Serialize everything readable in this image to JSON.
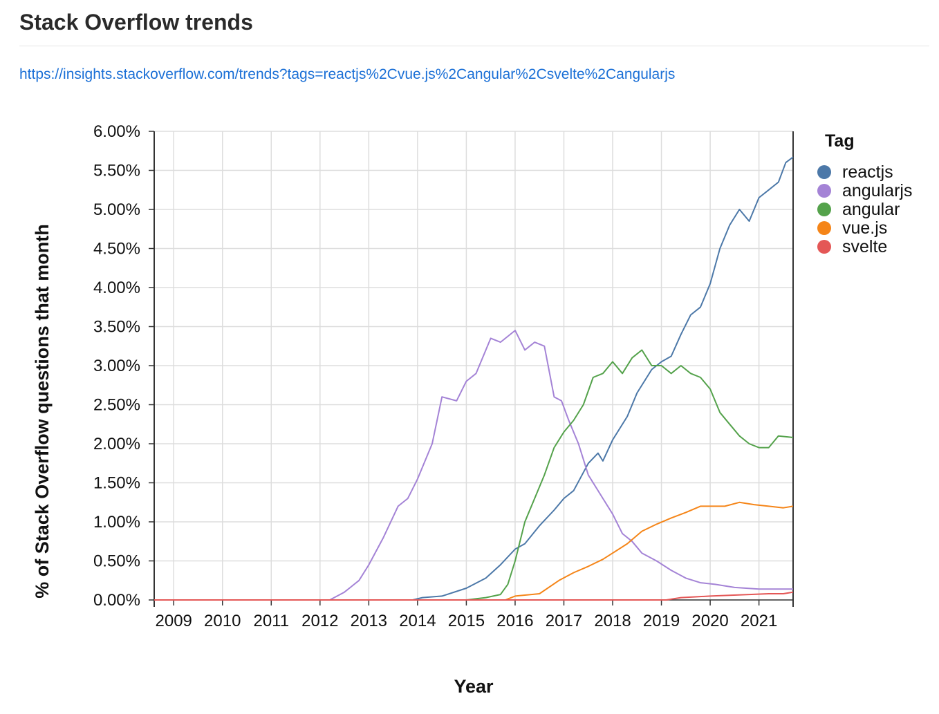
{
  "page": {
    "title": "Stack Overflow trends",
    "link": "https://insights.stackoverflow.com/trends?tags=reactjs%2Cvue.js%2Cangular%2Csvelte%2Cangularjs"
  },
  "chart_data": {
    "type": "line",
    "title": "",
    "xlabel": "Year",
    "ylabel": "% of Stack Overflow questions that month",
    "xlim": [
      2008.6,
      2021.7
    ],
    "ylim": [
      0,
      6
    ],
    "x_ticks": [
      2009,
      2010,
      2011,
      2012,
      2013,
      2014,
      2015,
      2016,
      2017,
      2018,
      2019,
      2020,
      2021
    ],
    "x_tick_labels": [
      "2009",
      "2010",
      "2011",
      "2012",
      "2013",
      "2014",
      "2015",
      "2016",
      "2017",
      "2018",
      "2019",
      "2020",
      "2021"
    ],
    "y_ticks": [
      0,
      0.5,
      1,
      1.5,
      2,
      2.5,
      3,
      3.5,
      4,
      4.5,
      5,
      5.5,
      6
    ],
    "y_tick_labels": [
      "0.00%",
      "0.50%",
      "1.00%",
      "1.50%",
      "2.00%",
      "2.50%",
      "3.00%",
      "3.50%",
      "4.00%",
      "4.50%",
      "5.00%",
      "5.50%",
      "6.00%"
    ],
    "grid": true,
    "legend": {
      "title": "Tag",
      "position": "right"
    },
    "series": [
      {
        "name": "reactjs",
        "color": "#4c78a8",
        "points": [
          [
            2008.6,
            0
          ],
          [
            2013.9,
            0
          ],
          [
            2014.1,
            0.03
          ],
          [
            2014.5,
            0.05
          ],
          [
            2015.0,
            0.15
          ],
          [
            2015.4,
            0.28
          ],
          [
            2015.7,
            0.45
          ],
          [
            2016.0,
            0.65
          ],
          [
            2016.2,
            0.72
          ],
          [
            2016.5,
            0.95
          ],
          [
            2016.8,
            1.15
          ],
          [
            2017.0,
            1.3
          ],
          [
            2017.2,
            1.4
          ],
          [
            2017.5,
            1.75
          ],
          [
            2017.7,
            1.88
          ],
          [
            2017.8,
            1.78
          ],
          [
            2018.0,
            2.05
          ],
          [
            2018.3,
            2.35
          ],
          [
            2018.5,
            2.65
          ],
          [
            2018.7,
            2.85
          ],
          [
            2018.8,
            2.95
          ],
          [
            2019.0,
            3.05
          ],
          [
            2019.2,
            3.12
          ],
          [
            2019.4,
            3.4
          ],
          [
            2019.6,
            3.65
          ],
          [
            2019.8,
            3.75
          ],
          [
            2020.0,
            4.05
          ],
          [
            2020.2,
            4.5
          ],
          [
            2020.4,
            4.8
          ],
          [
            2020.6,
            5.0
          ],
          [
            2020.8,
            4.85
          ],
          [
            2021.0,
            5.15
          ],
          [
            2021.2,
            5.25
          ],
          [
            2021.4,
            5.35
          ],
          [
            2021.55,
            5.6
          ],
          [
            2021.7,
            5.67
          ]
        ]
      },
      {
        "name": "angularjs",
        "color": "#a483d6",
        "points": [
          [
            2008.6,
            0
          ],
          [
            2012.2,
            0
          ],
          [
            2012.5,
            0.1
          ],
          [
            2012.8,
            0.25
          ],
          [
            2013.0,
            0.45
          ],
          [
            2013.3,
            0.8
          ],
          [
            2013.6,
            1.2
          ],
          [
            2013.8,
            1.3
          ],
          [
            2014.0,
            1.55
          ],
          [
            2014.3,
            2.0
          ],
          [
            2014.5,
            2.6
          ],
          [
            2014.8,
            2.55
          ],
          [
            2015.0,
            2.8
          ],
          [
            2015.2,
            2.9
          ],
          [
            2015.5,
            3.35
          ],
          [
            2015.7,
            3.3
          ],
          [
            2016.0,
            3.45
          ],
          [
            2016.2,
            3.2
          ],
          [
            2016.4,
            3.3
          ],
          [
            2016.6,
            3.25
          ],
          [
            2016.8,
            2.6
          ],
          [
            2016.95,
            2.55
          ],
          [
            2017.1,
            2.3
          ],
          [
            2017.3,
            2.0
          ],
          [
            2017.5,
            1.6
          ],
          [
            2017.8,
            1.3
          ],
          [
            2018.0,
            1.1
          ],
          [
            2018.2,
            0.85
          ],
          [
            2018.4,
            0.75
          ],
          [
            2018.6,
            0.6
          ],
          [
            2018.9,
            0.5
          ],
          [
            2019.2,
            0.38
          ],
          [
            2019.5,
            0.28
          ],
          [
            2019.8,
            0.22
          ],
          [
            2020.1,
            0.2
          ],
          [
            2020.5,
            0.16
          ],
          [
            2021.0,
            0.14
          ],
          [
            2021.7,
            0.14
          ]
        ]
      },
      {
        "name": "angular",
        "color": "#54a24b",
        "points": [
          [
            2008.6,
            0
          ],
          [
            2015.0,
            0
          ],
          [
            2015.4,
            0.03
          ],
          [
            2015.7,
            0.07
          ],
          [
            2015.85,
            0.2
          ],
          [
            2016.0,
            0.5
          ],
          [
            2016.2,
            1.0
          ],
          [
            2016.4,
            1.3
          ],
          [
            2016.6,
            1.6
          ],
          [
            2016.8,
            1.95
          ],
          [
            2017.0,
            2.15
          ],
          [
            2017.2,
            2.3
          ],
          [
            2017.4,
            2.5
          ],
          [
            2017.6,
            2.85
          ],
          [
            2017.8,
            2.9
          ],
          [
            2018.0,
            3.05
          ],
          [
            2018.2,
            2.9
          ],
          [
            2018.4,
            3.1
          ],
          [
            2018.6,
            3.2
          ],
          [
            2018.8,
            3.0
          ],
          [
            2019.0,
            3.0
          ],
          [
            2019.2,
            2.9
          ],
          [
            2019.4,
            3.0
          ],
          [
            2019.6,
            2.9
          ],
          [
            2019.8,
            2.85
          ],
          [
            2020.0,
            2.7
          ],
          [
            2020.2,
            2.4
          ],
          [
            2020.4,
            2.25
          ],
          [
            2020.6,
            2.1
          ],
          [
            2020.8,
            2.0
          ],
          [
            2021.0,
            1.95
          ],
          [
            2021.2,
            1.95
          ],
          [
            2021.4,
            2.1
          ],
          [
            2021.7,
            2.08
          ]
        ]
      },
      {
        "name": "vue.js",
        "color": "#f58518",
        "points": [
          [
            2008.6,
            0
          ],
          [
            2015.8,
            0
          ],
          [
            2016.0,
            0.05
          ],
          [
            2016.5,
            0.08
          ],
          [
            2016.9,
            0.25
          ],
          [
            2017.2,
            0.35
          ],
          [
            2017.5,
            0.43
          ],
          [
            2017.8,
            0.52
          ],
          [
            2018.0,
            0.6
          ],
          [
            2018.3,
            0.72
          ],
          [
            2018.6,
            0.88
          ],
          [
            2018.9,
            0.97
          ],
          [
            2019.2,
            1.05
          ],
          [
            2019.5,
            1.12
          ],
          [
            2019.8,
            1.2
          ],
          [
            2020.0,
            1.2
          ],
          [
            2020.3,
            1.2
          ],
          [
            2020.6,
            1.25
          ],
          [
            2020.9,
            1.22
          ],
          [
            2021.2,
            1.2
          ],
          [
            2021.5,
            1.18
          ],
          [
            2021.7,
            1.2
          ]
        ]
      },
      {
        "name": "svelte",
        "color": "#e45756",
        "points": [
          [
            2008.6,
            0
          ],
          [
            2019.1,
            0
          ],
          [
            2019.4,
            0.03
          ],
          [
            2019.7,
            0.04
          ],
          [
            2020.0,
            0.05
          ],
          [
            2020.4,
            0.06
          ],
          [
            2020.8,
            0.07
          ],
          [
            2021.2,
            0.08
          ],
          [
            2021.5,
            0.08
          ],
          [
            2021.7,
            0.1
          ]
        ]
      }
    ]
  }
}
